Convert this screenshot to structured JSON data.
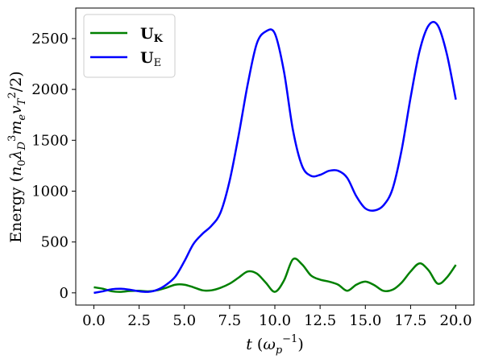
{
  "chart_data": {
    "type": "line",
    "xlabel": "t (ω_p^-1)",
    "ylabel": "Energy (n0 λD^3 me vT^2/2)",
    "xlim": [
      -1.0,
      21.0
    ],
    "ylim": [
      -120,
      2800
    ],
    "x_ticks": [
      0.0,
      2.5,
      5.0,
      7.5,
      10.0,
      12.5,
      15.0,
      17.5,
      20.0
    ],
    "x_tick_labels": [
      "0.0",
      "2.5",
      "5.0",
      "7.5",
      "10.0",
      "12.5",
      "15.0",
      "17.5",
      "20.0"
    ],
    "y_ticks": [
      0,
      500,
      1000,
      1500,
      2000,
      2500
    ],
    "y_tick_labels": [
      "0",
      "500",
      "1000",
      "1500",
      "2000",
      "2500"
    ],
    "legend_position": "upper-left",
    "grid": false,
    "series": [
      {
        "name": "U_K",
        "color": "#008000",
        "x": [
          0,
          0.5,
          1,
          1.5,
          2,
          2.5,
          3,
          3.5,
          4,
          4.5,
          5,
          5.5,
          6,
          6.5,
          7,
          7.5,
          8,
          8.5,
          9,
          9.5,
          10,
          10.5,
          11,
          11.5,
          12,
          12.5,
          13,
          13.5,
          14,
          14.5,
          15,
          15.5,
          16,
          16.5,
          17,
          17.5,
          18,
          18.5,
          19,
          19.5,
          20
        ],
        "y": [
          55,
          40,
          15,
          10,
          18,
          20,
          15,
          25,
          50,
          80,
          80,
          55,
          25,
          25,
          50,
          90,
          150,
          210,
          190,
          100,
          10,
          120,
          330,
          280,
          170,
          130,
          110,
          80,
          20,
          80,
          110,
          75,
          20,
          30,
          100,
          210,
          290,
          220,
          90,
          150,
          275
        ]
      },
      {
        "name": "U_E",
        "color": "#0000ff",
        "x": [
          0,
          0.5,
          1,
          1.5,
          2,
          2.5,
          3,
          3.5,
          4,
          4.5,
          5,
          5.5,
          6,
          6.5,
          7,
          7.5,
          8,
          8.5,
          9,
          9.5,
          10,
          10.5,
          11,
          11.5,
          12,
          12.5,
          13,
          13.5,
          14,
          14.5,
          15,
          15.5,
          16,
          16.5,
          17,
          17.5,
          18,
          18.5,
          19,
          19.5,
          20
        ],
        "y": [
          0,
          15,
          35,
          40,
          30,
          15,
          10,
          30,
          80,
          160,
          310,
          480,
          580,
          660,
          790,
          1100,
          1550,
          2050,
          2450,
          2570,
          2550,
          2180,
          1600,
          1250,
          1150,
          1160,
          1200,
          1200,
          1130,
          950,
          830,
          810,
          860,
          1020,
          1400,
          1920,
          2380,
          2630,
          2630,
          2350,
          1900
        ]
      }
    ]
  }
}
